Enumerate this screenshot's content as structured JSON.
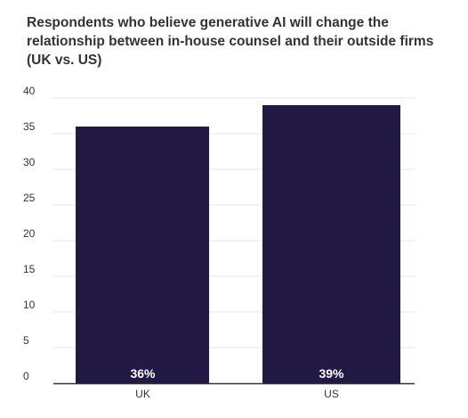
{
  "chart_data": {
    "type": "bar",
    "title": "Respondents who believe generative AI will change the\nrelationship between in-house counsel and their outside firms\n(UK vs. US)",
    "categories": [
      "UK",
      "US"
    ],
    "values": [
      36,
      39
    ],
    "data_labels": [
      "36%",
      "39%"
    ],
    "ylim": [
      0,
      40
    ],
    "yticks": [
      "0",
      "5",
      "10",
      "15",
      "20",
      "25",
      "30",
      "35",
      "40"
    ],
    "grid": true,
    "bar_color": "#221a44",
    "grid_color": "#e6e6e6",
    "axis_color": "#333333"
  }
}
